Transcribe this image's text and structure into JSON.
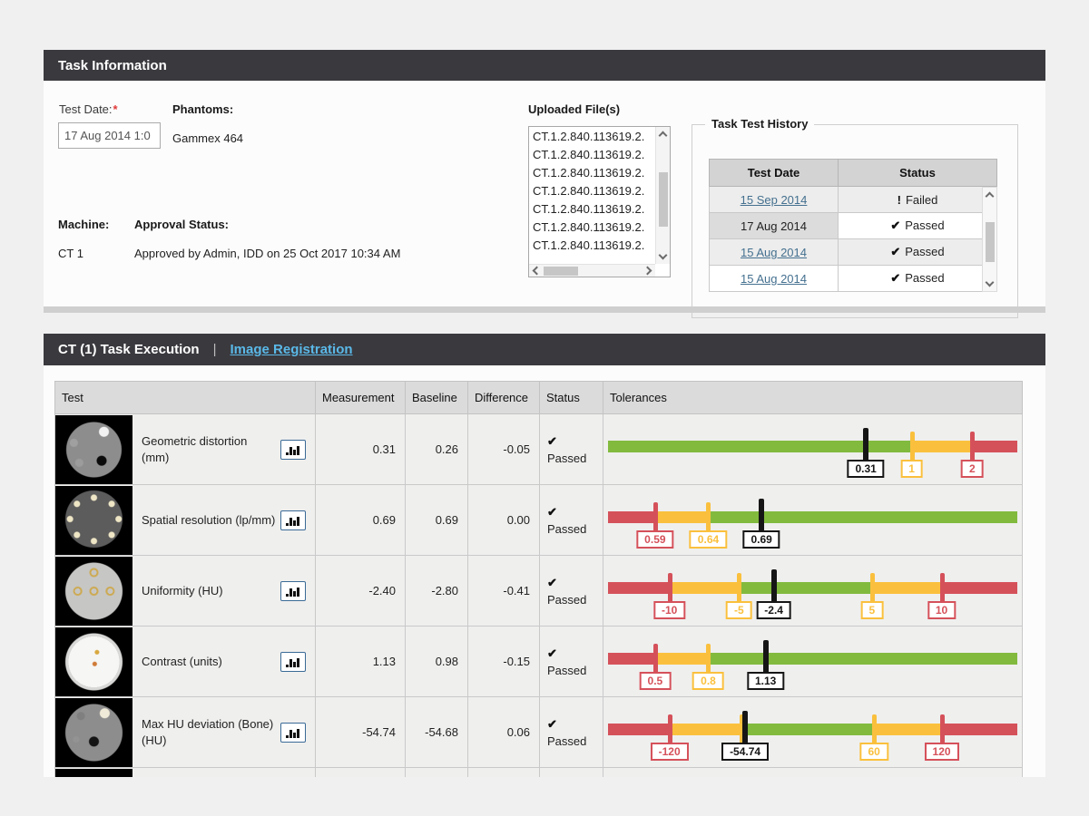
{
  "colors": {
    "green": "#82ba3e",
    "yellow": "#fac03d",
    "red": "#d5515a",
    "black": "#161616"
  },
  "task_info": {
    "title": "Task Information",
    "test_date": {
      "label": "Test Date:",
      "required": "*",
      "value": "17 Aug 2014 1:0"
    },
    "phantoms": {
      "label": "Phantoms:",
      "value": "Gammex 464"
    },
    "machine": {
      "label": "Machine:",
      "value": "CT 1"
    },
    "approval": {
      "label": "Approval Status:",
      "value": "Approved by Admin, IDD on 25 Oct 2017 10:34 AM"
    },
    "uploaded_files": {
      "label": "Uploaded File(s)",
      "items": [
        "CT.1.2.840.113619.2.",
        "CT.1.2.840.113619.2.",
        "CT.1.2.840.113619.2.",
        "CT.1.2.840.113619.2.",
        "CT.1.2.840.113619.2.",
        "CT.1.2.840.113619.2.",
        "CT.1.2.840.113619.2."
      ]
    },
    "history": {
      "legend": "Task Test History",
      "columns": [
        "Test Date",
        "Status"
      ],
      "rows": [
        {
          "date": "15 Sep 2014",
          "link": true,
          "status": "Failed",
          "icon": "!",
          "passed": false,
          "shaded": true,
          "selected": false
        },
        {
          "date": "17 Aug 2014",
          "link": false,
          "status": "Passed",
          "icon": "✔",
          "passed": true,
          "shaded": false,
          "selected": true
        },
        {
          "date": "15 Aug 2014",
          "link": true,
          "status": "Passed",
          "icon": "✔",
          "passed": true,
          "shaded": true,
          "selected": false
        },
        {
          "date": "15 Aug 2014",
          "link": true,
          "status": "Passed",
          "icon": "✔",
          "passed": true,
          "shaded": false,
          "selected": false
        }
      ]
    }
  },
  "execution": {
    "title": "CT (1) Task Execution",
    "separator": "|",
    "registration_link": "Image Registration",
    "columns": [
      "Test",
      "Measurement",
      "Baseline",
      "Difference",
      "Status",
      "Tolerances"
    ],
    "rows": [
      {
        "test": "Geometric distortion (mm)",
        "thumb": "thumb-geometric",
        "thumb_name": "phantom-geometric-thumbnail",
        "measurement": "0.31",
        "baseline": "0.26",
        "difference": "-0.05",
        "status": "Passed",
        "status_icon": "✔",
        "tolerance": {
          "segments": [
            {
              "from": 0,
              "to": 74.2,
              "color": "green"
            },
            {
              "from": 74.2,
              "to": 89,
              "color": "yellow"
            },
            {
              "from": 89,
              "to": 100,
              "color": "red"
            }
          ],
          "markers": [
            {
              "pos": 63,
              "value": "0.31",
              "color": "black"
            },
            {
              "pos": 74.2,
              "value": "1",
              "color": "yellow"
            },
            {
              "pos": 89,
              "value": "2",
              "color": "red"
            }
          ]
        }
      },
      {
        "test": "Spatial resolution (lp/mm)",
        "thumb": "thumb-resolution",
        "thumb_name": "phantom-resolution-thumbnail",
        "measurement": "0.69",
        "baseline": "0.69",
        "difference": "0.00",
        "status": "Passed",
        "status_icon": "✔",
        "tolerance": {
          "segments": [
            {
              "from": 0,
              "to": 11.5,
              "color": "red"
            },
            {
              "from": 11.5,
              "to": 24.5,
              "color": "yellow"
            },
            {
              "from": 24.5,
              "to": 100,
              "color": "green"
            }
          ],
          "markers": [
            {
              "pos": 11.5,
              "value": "0.59",
              "color": "red"
            },
            {
              "pos": 24.5,
              "value": "0.64",
              "color": "yellow"
            },
            {
              "pos": 37.5,
              "value": "0.69",
              "color": "black"
            }
          ]
        }
      },
      {
        "test": "Uniformity (HU)",
        "thumb": "thumb-uniformity",
        "thumb_name": "phantom-uniformity-thumbnail",
        "measurement": "-2.40",
        "baseline": "-2.80",
        "difference": "-0.41",
        "status": "Passed",
        "status_icon": "✔",
        "tolerance": {
          "segments": [
            {
              "from": 0,
              "to": 15,
              "color": "red"
            },
            {
              "from": 15,
              "to": 32,
              "color": "yellow"
            },
            {
              "from": 32,
              "to": 64.5,
              "color": "green"
            },
            {
              "from": 64.5,
              "to": 81.5,
              "color": "yellow"
            },
            {
              "from": 81.5,
              "to": 100,
              "color": "red"
            }
          ],
          "markers": [
            {
              "pos": 15,
              "value": "-10",
              "color": "red"
            },
            {
              "pos": 32,
              "value": "-5",
              "color": "yellow"
            },
            {
              "pos": 40.5,
              "value": "-2.4",
              "color": "black"
            },
            {
              "pos": 64.5,
              "value": "5",
              "color": "yellow"
            },
            {
              "pos": 81.5,
              "value": "10",
              "color": "red"
            }
          ]
        }
      },
      {
        "test": "Contrast (units)",
        "thumb": "thumb-contrast",
        "thumb_name": "phantom-contrast-thumbnail",
        "measurement": "1.13",
        "baseline": "0.98",
        "difference": "-0.15",
        "status": "Passed",
        "status_icon": "✔",
        "tolerance": {
          "segments": [
            {
              "from": 0,
              "to": 11.5,
              "color": "red"
            },
            {
              "from": 11.5,
              "to": 24.5,
              "color": "yellow"
            },
            {
              "from": 24.5,
              "to": 100,
              "color": "green"
            }
          ],
          "markers": [
            {
              "pos": 11.5,
              "value": "0.5",
              "color": "red"
            },
            {
              "pos": 24.5,
              "value": "0.8",
              "color": "yellow"
            },
            {
              "pos": 38.5,
              "value": "1.13",
              "color": "black"
            }
          ]
        }
      },
      {
        "test": "Max HU deviation (Bone) (HU)",
        "thumb": "thumb-bone",
        "thumb_name": "phantom-bone-thumbnail",
        "measurement": "-54.74",
        "baseline": "-54.68",
        "difference": "0.06",
        "status": "Passed",
        "status_icon": "✔",
        "tolerance": {
          "segments": [
            {
              "from": 0,
              "to": 15,
              "color": "red"
            },
            {
              "from": 15,
              "to": 33,
              "color": "yellow"
            },
            {
              "from": 33,
              "to": 64.5,
              "color": "green"
            },
            {
              "from": 64.5,
              "to": 81.5,
              "color": "yellow"
            },
            {
              "from": 81.5,
              "to": 100,
              "color": "red"
            }
          ],
          "markers": [
            {
              "pos": 15,
              "value": "-120",
              "color": "red"
            },
            {
              "pos": 32.5,
              "value": "",
              "color": "yellow"
            },
            {
              "pos": 33.5,
              "value": "-54.74",
              "color": "black"
            },
            {
              "pos": 65,
              "value": "60",
              "color": "yellow"
            },
            {
              "pos": 81.5,
              "value": "120",
              "color": "red"
            }
          ]
        }
      },
      {
        "test": "",
        "thumb": "thumb-partial",
        "thumb_name": "phantom-partial-thumbnail",
        "measurement": "",
        "baseline": "",
        "difference": "",
        "status": "",
        "status_icon": "",
        "tolerance": {
          "segments": [],
          "markers": []
        }
      }
    ]
  }
}
